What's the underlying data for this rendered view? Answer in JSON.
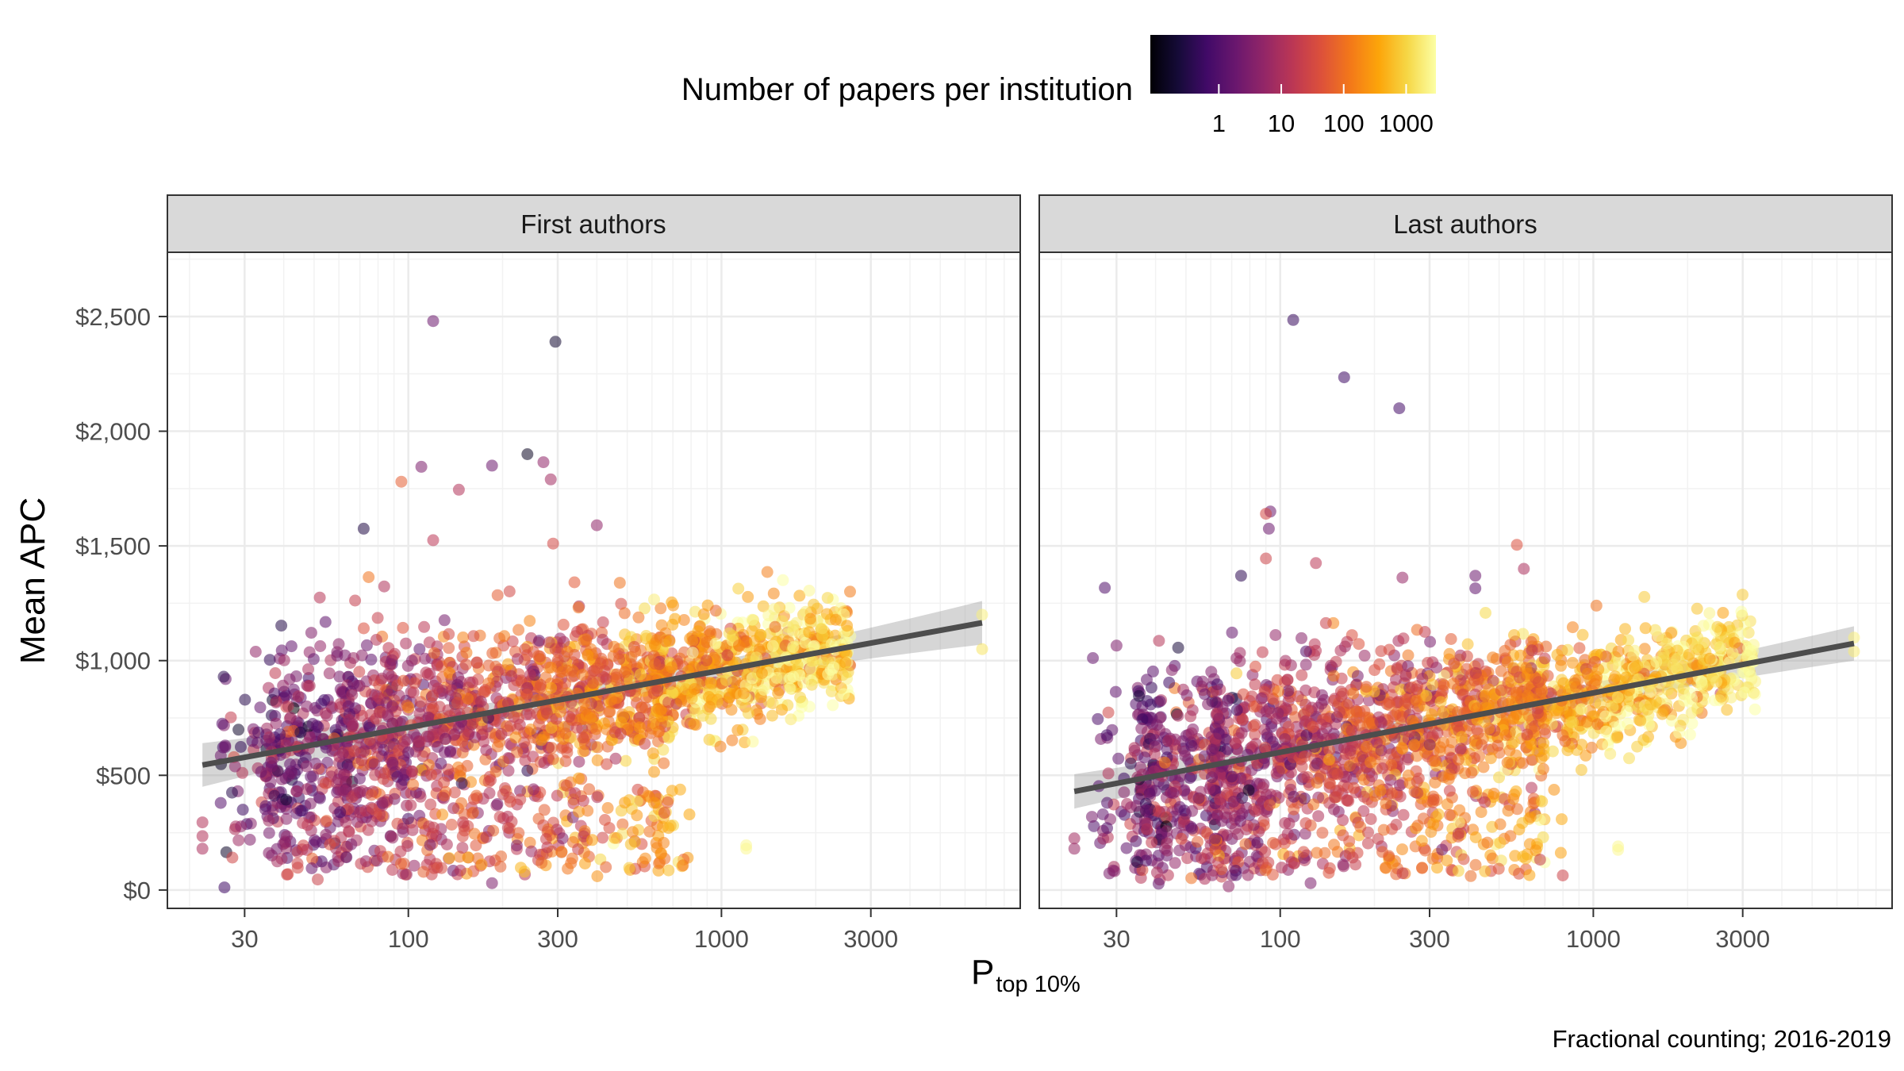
{
  "chart_data": {
    "type": "scatter",
    "xlabel": "P",
    "xlabel_subscript": "top 10%",
    "ylabel": "Mean APC",
    "x_scale": "log10",
    "xlim": [
      17,
      9000
    ],
    "ylim": [
      -80,
      2780
    ],
    "x_ticks": [
      30,
      100,
      300,
      1000,
      3000
    ],
    "x_tick_labels": [
      "30",
      "100",
      "300",
      "1000",
      "3000"
    ],
    "y_ticks": [
      0,
      500,
      1000,
      1500,
      2000,
      2500
    ],
    "y_tick_labels": [
      "$0",
      "$500",
      "$1,000",
      "$1,500",
      "$2,000",
      "$2,500"
    ],
    "grid": true,
    "color_legend": {
      "title": "Number of papers per institution",
      "scale": "log10",
      "palette": "inferno",
      "range": [
        0.08,
        3000
      ],
      "ticks": [
        1,
        10,
        100,
        1000
      ],
      "tick_labels": [
        "1",
        "10",
        "100",
        "1000"
      ],
      "position": "top"
    },
    "caption": "Fractional counting; 2016-2019",
    "facets": [
      {
        "label": "First authors",
        "trend": {
          "x": [
            22,
            6800
          ],
          "y": [
            545,
            1165
          ],
          "ci": [
            38,
            95
          ]
        },
        "outliers": [
          {
            "x": 120,
            "y": 2480,
            "n": 2
          },
          {
            "x": 295,
            "y": 2390,
            "n": 0.2
          },
          {
            "x": 110,
            "y": 1845,
            "n": 3
          },
          {
            "x": 185,
            "y": 1850,
            "n": 2
          },
          {
            "x": 240,
            "y": 1900,
            "n": 0.15
          },
          {
            "x": 270,
            "y": 1865,
            "n": 5
          },
          {
            "x": 285,
            "y": 1790,
            "n": 8
          },
          {
            "x": 145,
            "y": 1745,
            "n": 12
          },
          {
            "x": 95,
            "y": 1780,
            "n": 60
          },
          {
            "x": 72,
            "y": 1575,
            "n": 0.3
          },
          {
            "x": 400,
            "y": 1590,
            "n": 5
          },
          {
            "x": 120,
            "y": 1525,
            "n": 15
          },
          {
            "x": 290,
            "y": 1510,
            "n": 30
          },
          {
            "x": 1200,
            "y": 195,
            "n": 2500
          },
          {
            "x": 1200,
            "y": 180,
            "n": 2500
          },
          {
            "x": 22,
            "y": 295,
            "n": 12
          },
          {
            "x": 22,
            "y": 235,
            "n": 12
          },
          {
            "x": 22,
            "y": 180,
            "n": 10
          },
          {
            "x": 185,
            "y": 30,
            "n": 3
          },
          {
            "x": 26,
            "y": 630,
            "n": 2
          },
          {
            "x": 240,
            "y": 520,
            "n": 0.4
          },
          {
            "x": 100,
            "y": 600,
            "n": 2
          },
          {
            "x": 180,
            "y": 750,
            "n": 0.5
          },
          {
            "x": 6800,
            "y": 1200,
            "n": 2000
          },
          {
            "x": 6800,
            "y": 1050,
            "n": 1500
          }
        ]
      },
      {
        "label": "Last authors",
        "trend": {
          "x": [
            22,
            6800
          ],
          "y": [
            430,
            1075
          ],
          "ci": [
            40,
            75
          ]
        },
        "outliers": [
          {
            "x": 110,
            "y": 2485,
            "n": 0.5
          },
          {
            "x": 160,
            "y": 2235,
            "n": 0.6
          },
          {
            "x": 240,
            "y": 2100,
            "n": 0.7
          },
          {
            "x": 93,
            "y": 1650,
            "n": 2
          },
          {
            "x": 92,
            "y": 1575,
            "n": 2
          },
          {
            "x": 90,
            "y": 1640,
            "n": 30
          },
          {
            "x": 90,
            "y": 1445,
            "n": 25
          },
          {
            "x": 75,
            "y": 1370,
            "n": 0.4
          },
          {
            "x": 130,
            "y": 1425,
            "n": 15
          },
          {
            "x": 570,
            "y": 1505,
            "n": 40
          },
          {
            "x": 420,
            "y": 1370,
            "n": 2
          },
          {
            "x": 420,
            "y": 1315,
            "n": 1.5
          },
          {
            "x": 600,
            "y": 1400,
            "n": 10
          },
          {
            "x": 1200,
            "y": 190,
            "n": 2500
          },
          {
            "x": 1200,
            "y": 175,
            "n": 2500
          },
          {
            "x": 22,
            "y": 225,
            "n": 8
          },
          {
            "x": 22,
            "y": 180,
            "n": 6
          },
          {
            "x": 28,
            "y": 270,
            "n": 1
          },
          {
            "x": 28,
            "y": 380,
            "n": 1
          },
          {
            "x": 125,
            "y": 30,
            "n": 3
          },
          {
            "x": 6800,
            "y": 1100,
            "n": 2000
          },
          {
            "x": 6800,
            "y": 1040,
            "n": 1800
          }
        ]
      }
    ]
  }
}
